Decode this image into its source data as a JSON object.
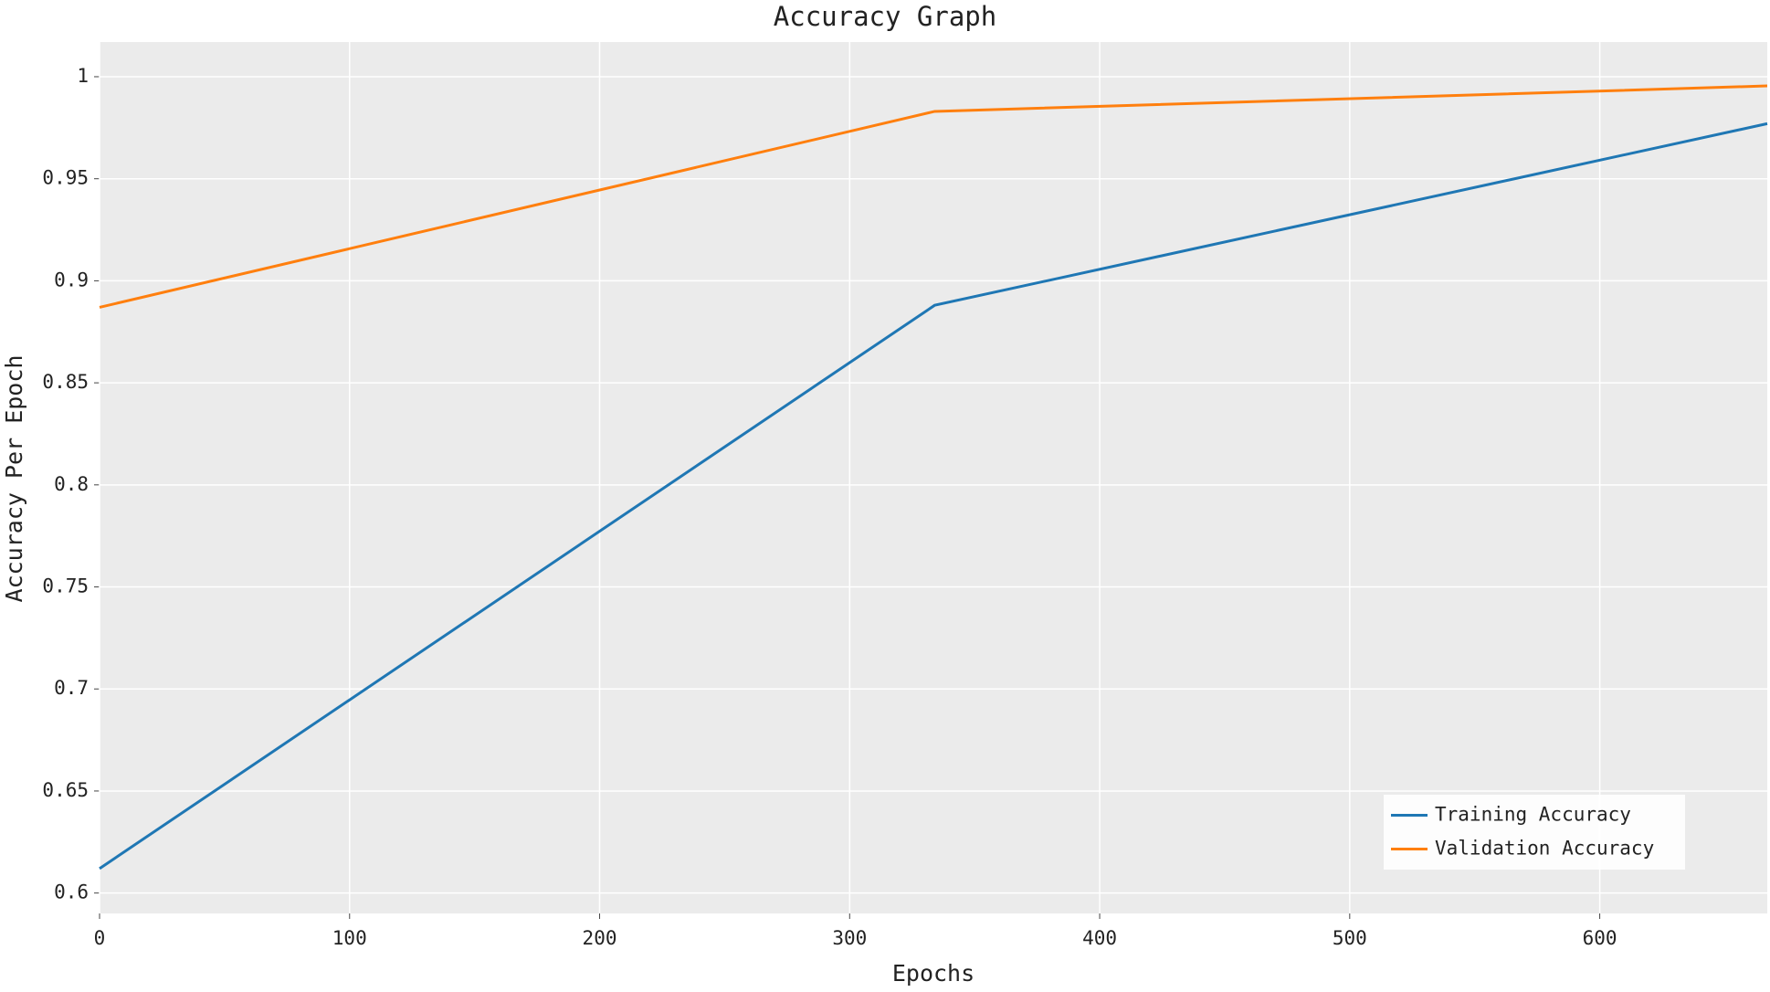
{
  "chart_data": {
    "type": "line",
    "title": "Accuracy Graph",
    "x_label": "Epochs",
    "y_label": "Accuracy Per Epoch",
    "x": [
      0,
      334,
      667
    ],
    "series": [
      {
        "name": "Training Accuracy",
        "color": "#1f77b4",
        "values": [
          0.612,
          0.888,
          0.977
        ]
      },
      {
        "name": "Validation Accuracy",
        "color": "#ff7f0e",
        "values": [
          0.887,
          0.983,
          0.9955
        ]
      }
    ],
    "xlim": [
      0,
      667
    ],
    "xticks": [
      0,
      100,
      200,
      300,
      400,
      500,
      600
    ],
    "ylim": [
      0.59,
      1.017
    ],
    "yticks": [
      0.6,
      0.65,
      0.7,
      0.75,
      0.8,
      0.85,
      0.9,
      0.95,
      1
    ],
    "grid": true,
    "legend": "lower right"
  }
}
